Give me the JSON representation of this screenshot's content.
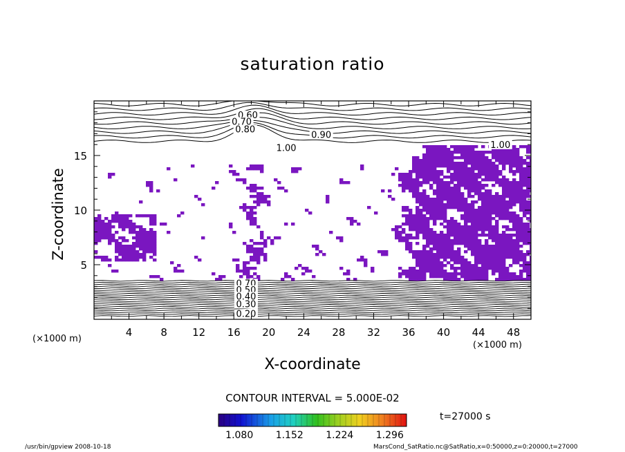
{
  "chart_data": {
    "type": "contour",
    "title": "saturation ratio",
    "xlabel": "X-coordinate",
    "ylabel": "Z-coordinate",
    "x_unit": "(×1000 m)",
    "y_unit": "(×1000 m)",
    "x_range": [
      0,
      50
    ],
    "y_range": [
      0,
      20
    ],
    "x_ticks": [
      4,
      8,
      12,
      16,
      20,
      24,
      28,
      32,
      36,
      40,
      44,
      48
    ],
    "y_ticks": [
      5,
      10,
      15
    ],
    "contour_labels": [
      {
        "x": 17.6,
        "z": 18.6,
        "text": "0.60"
      },
      {
        "x": 16.9,
        "z": 18.0,
        "text": "0.70"
      },
      {
        "x": 17.3,
        "z": 17.3,
        "text": "0.80"
      },
      {
        "x": 26.0,
        "z": 16.8,
        "text": "0.90"
      },
      {
        "x": 22.0,
        "z": 15.6,
        "text": "1.00"
      },
      {
        "x": 46.5,
        "z": 15.9,
        "text": "1.00"
      },
      {
        "x": 17.4,
        "z": 3.2,
        "text": "0.70"
      },
      {
        "x": 17.4,
        "z": 2.6,
        "text": "0.50"
      },
      {
        "x": 17.4,
        "z": 2.0,
        "text": "0.40"
      },
      {
        "x": 17.4,
        "z": 1.3,
        "text": "0.30"
      },
      {
        "x": 17.4,
        "z": 0.4,
        "text": "0.20"
      }
    ],
    "shaded_threshold": 1.05,
    "contour_interval": "5.000E-02",
    "colorbar": {
      "min": 1.05,
      "max": 1.32,
      "tick_values": [
        1.08,
        1.152,
        1.224,
        1.296
      ],
      "tick_labels": [
        "1.080",
        "1.152",
        "1.224",
        "1.296"
      ]
    },
    "time_label": "t=27000 s"
  },
  "annotations": {
    "contour_interval_text": "CONTOUR INTERVAL = 5.000E-02",
    "footer_left": "/usr/bin/gpview   2008-10-18",
    "footer_right": "MarsCond_SatRatio.nc@SatRatio,x=0:50000,z=0:20000,t=27000"
  },
  "colors": {
    "shading": "#7a16c0",
    "contour_line": "#000000",
    "background": "#ffffff"
  }
}
